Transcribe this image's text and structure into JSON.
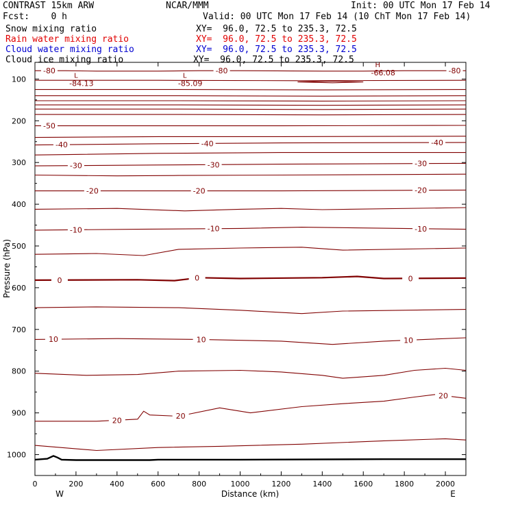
{
  "header": {
    "title": "CONTRAST 15km ARW",
    "center": "NCAR/MMM",
    "init": "Init: 00 UTC Mon 17 Feb 14",
    "fcst": "Fcst:    0 h",
    "valid": "Valid: 00 UTC Mon 17 Feb 14 (10 ChT Mon 17 Feb 14)"
  },
  "fields": [
    {
      "label": "Snow mixing ratio",
      "xy": "XY=  96.0, 72.5 to 235.3, 72.5",
      "color": "#000000"
    },
    {
      "label": "Rain water mixing ratio",
      "xy": "XY=  96.0, 72.5 to 235.3, 72.5",
      "color": "#e00000"
    },
    {
      "label": "Cloud water mixing ratio",
      "xy": "XY=  96.0, 72.5 to 235.3, 72.5",
      "color": "#0000d0"
    },
    {
      "label": "Cloud ice mixing ratio",
      "xy": "XY=  96.0, 72.5 to 235.3, 72.5",
      "color": "#000000"
    }
  ],
  "chart_data": {
    "type": "line",
    "xlabel": "Distance (km)",
    "ylabel": "Pressure (hPa)",
    "xlim": [
      0,
      2100
    ],
    "ylim": [
      1050,
      60
    ],
    "x_ticks": [
      "0",
      "200",
      "400",
      "600",
      "800",
      "1000",
      "1200",
      "1400",
      "1600",
      "1800",
      "2000"
    ],
    "y_ticks": [
      "100",
      "200",
      "300",
      "400",
      "500",
      "600",
      "700",
      "800",
      "900",
      "1000"
    ],
    "x_end_labels": {
      "left": "W",
      "right": "E"
    },
    "contour_color": "#800000",
    "contour_labels": [
      "-80",
      "-80",
      "-80",
      "-50",
      "-40",
      "-40",
      "-40",
      "-30",
      "-30",
      "-30",
      "-20",
      "-20",
      "-20",
      "-10",
      "-10",
      "-10",
      "0",
      "0",
      "0",
      "10",
      "10",
      "10",
      "20",
      "20",
      "20"
    ],
    "extrema": [
      {
        "mark": "L",
        "value": "-84.13",
        "x": 200,
        "p": 110
      },
      {
        "mark": "L",
        "value": "-85.09",
        "x": 730,
        "p": 110
      },
      {
        "mark": "H",
        "value": "-66.08",
        "x": 1670,
        "p": 85
      }
    ],
    "terrain_p": [
      [
        0,
        1012
      ],
      [
        60,
        1010
      ],
      [
        90,
        1003
      ],
      [
        110,
        1007
      ],
      [
        130,
        1012
      ],
      [
        200,
        1013
      ],
      [
        560,
        1013
      ],
      [
        600,
        1012
      ],
      [
        1000,
        1012
      ],
      [
        1700,
        1011
      ],
      [
        2100,
        1011
      ]
    ],
    "series": [
      {
        "level": "-80",
        "p": [
          [
            0,
            80
          ],
          [
            150,
            80
          ],
          [
            300,
            81
          ],
          [
            600,
            81
          ],
          [
            800,
            80
          ],
          [
            1000,
            80
          ],
          [
            1400,
            81
          ],
          [
            1600,
            81
          ],
          [
            1800,
            80
          ],
          [
            2100,
            80
          ]
        ],
        "labels": [
          {
            "x": 70,
            "text": "-80"
          },
          {
            "x": 910,
            "text": "-80"
          },
          {
            "x": 2045,
            "text": "-80"
          }
        ]
      },
      {
        "level": "",
        "p": [
          [
            0,
            103
          ],
          [
            600,
            103
          ],
          [
            1300,
            104
          ],
          [
            2100,
            103
          ]
        ]
      },
      {
        "level": "",
        "p": [
          [
            1280,
            107
          ],
          [
            1450,
            105
          ],
          [
            1600,
            107
          ],
          [
            1450,
            109
          ],
          [
            1280,
            107
          ]
        ]
      },
      {
        "level": "",
        "p": [
          [
            0,
            125
          ],
          [
            700,
            125
          ],
          [
            1400,
            126
          ],
          [
            2100,
            125
          ]
        ]
      },
      {
        "level": "",
        "p": [
          [
            0,
            140
          ],
          [
            700,
            140
          ],
          [
            1400,
            141
          ],
          [
            2100,
            140
          ]
        ]
      },
      {
        "level": "",
        "p": [
          [
            0,
            152
          ],
          [
            700,
            152
          ],
          [
            1400,
            153
          ],
          [
            2100,
            152
          ]
        ]
      },
      {
        "level": "",
        "p": [
          [
            0,
            162
          ],
          [
            700,
            162
          ],
          [
            1400,
            163
          ],
          [
            2100,
            162
          ]
        ]
      },
      {
        "level": "",
        "p": [
          [
            0,
            172
          ],
          [
            700,
            172
          ],
          [
            1400,
            173
          ],
          [
            2100,
            172
          ]
        ]
      },
      {
        "level": "",
        "p": [
          [
            0,
            185
          ],
          [
            700,
            185
          ],
          [
            1400,
            186
          ],
          [
            2100,
            185
          ]
        ]
      },
      {
        "level": "-50",
        "p": [
          [
            0,
            212
          ],
          [
            600,
            212
          ],
          [
            1200,
            212
          ],
          [
            2100,
            211
          ]
        ],
        "labels": [
          {
            "x": 70,
            "text": "-50"
          }
        ]
      },
      {
        "level": "",
        "p": [
          [
            0,
            240
          ],
          [
            600,
            238
          ],
          [
            1200,
            238
          ],
          [
            2100,
            237
          ]
        ]
      },
      {
        "level": "-40",
        "p": [
          [
            0,
            258
          ],
          [
            600,
            255
          ],
          [
            1200,
            253
          ],
          [
            2100,
            252
          ]
        ],
        "labels": [
          {
            "x": 130,
            "text": "-40"
          },
          {
            "x": 840,
            "text": "-40"
          },
          {
            "x": 1960,
            "text": "-40"
          }
        ]
      },
      {
        "level": "",
        "p": [
          [
            0,
            282
          ],
          [
            600,
            278
          ],
          [
            1200,
            276
          ],
          [
            2100,
            276
          ]
        ]
      },
      {
        "level": "-30",
        "p": [
          [
            0,
            308
          ],
          [
            600,
            306
          ],
          [
            1200,
            304
          ],
          [
            2100,
            302
          ]
        ],
        "labels": [
          {
            "x": 200,
            "text": "-30"
          },
          {
            "x": 870,
            "text": "-30"
          },
          {
            "x": 1880,
            "text": "-30"
          }
        ]
      },
      {
        "level": "",
        "p": [
          [
            0,
            330
          ],
          [
            400,
            332
          ],
          [
            700,
            331
          ],
          [
            1200,
            330
          ],
          [
            2100,
            328
          ]
        ]
      },
      {
        "level": "-20",
        "p": [
          [
            0,
            368
          ],
          [
            400,
            368
          ],
          [
            700,
            368
          ],
          [
            1200,
            368
          ],
          [
            2100,
            366
          ]
        ],
        "labels": [
          {
            "x": 280,
            "text": "-20"
          },
          {
            "x": 800,
            "text": "-20"
          },
          {
            "x": 1880,
            "text": "-20"
          }
        ]
      },
      {
        "level": "",
        "p": [
          [
            0,
            412
          ],
          [
            400,
            410
          ],
          [
            730,
            416
          ],
          [
            1000,
            412
          ],
          [
            1200,
            410
          ],
          [
            1400,
            413
          ],
          [
            2100,
            408
          ]
        ]
      },
      {
        "level": "-10",
        "p": [
          [
            0,
            462
          ],
          [
            500,
            460
          ],
          [
            1000,
            458
          ],
          [
            1300,
            455
          ],
          [
            2100,
            460
          ]
        ],
        "labels": [
          {
            "x": 200,
            "text": "-10"
          },
          {
            "x": 870,
            "text": "-10"
          },
          {
            "x": 1880,
            "text": "-10"
          }
        ]
      },
      {
        "level": "",
        "p": [
          [
            0,
            520
          ],
          [
            300,
            518
          ],
          [
            530,
            523
          ],
          [
            700,
            508
          ],
          [
            1000,
            505
          ],
          [
            1300,
            503
          ],
          [
            1500,
            510
          ],
          [
            2100,
            505
          ]
        ]
      },
      {
        "level": "0",
        "p": [
          [
            0,
            582
          ],
          [
            500,
            581
          ],
          [
            680,
            583
          ],
          [
            800,
            576
          ],
          [
            1000,
            578
          ],
          [
            1400,
            576
          ],
          [
            1570,
            573
          ],
          [
            1700,
            578
          ],
          [
            2100,
            577
          ]
        ],
        "labels": [
          {
            "x": 120,
            "text": "0"
          },
          {
            "x": 790,
            "text": "0"
          },
          {
            "x": 1830,
            "text": "0"
          }
        ],
        "bold": true
      },
      {
        "level": "",
        "p": [
          [
            0,
            648
          ],
          [
            300,
            646
          ],
          [
            700,
            648
          ],
          [
            1000,
            654
          ],
          [
            1300,
            662
          ],
          [
            1500,
            656
          ],
          [
            2100,
            652
          ]
        ]
      },
      {
        "level": "10",
        "p": [
          [
            0,
            724
          ],
          [
            400,
            722
          ],
          [
            800,
            724
          ],
          [
            1200,
            728
          ],
          [
            1450,
            736
          ],
          [
            1700,
            728
          ],
          [
            2100,
            720
          ]
        ],
        "labels": [
          {
            "x": 90,
            "text": "10"
          },
          {
            "x": 810,
            "text": "10"
          },
          {
            "x": 1820,
            "text": "10"
          }
        ]
      },
      {
        "level": "",
        "p": [
          [
            0,
            805
          ],
          [
            250,
            810
          ],
          [
            500,
            808
          ],
          [
            700,
            800
          ],
          [
            1000,
            798
          ],
          [
            1200,
            802
          ],
          [
            1400,
            810
          ],
          [
            1500,
            817
          ],
          [
            1700,
            810
          ],
          [
            1850,
            798
          ],
          [
            2000,
            793
          ],
          [
            2100,
            798
          ]
        ]
      },
      {
        "level": "20",
        "p": [
          [
            0,
            920
          ],
          [
            300,
            920
          ],
          [
            500,
            915
          ],
          [
            530,
            896
          ],
          [
            560,
            905
          ],
          [
            700,
            908
          ],
          [
            900,
            888
          ],
          [
            1050,
            900
          ],
          [
            1300,
            885
          ],
          [
            1500,
            878
          ],
          [
            1700,
            872
          ],
          [
            1850,
            862
          ],
          [
            1950,
            856
          ],
          [
            2100,
            865
          ]
        ],
        "labels": [
          {
            "x": 400,
            "text": "20"
          },
          {
            "x": 710,
            "text": "20"
          },
          {
            "x": 1990,
            "text": "20"
          }
        ]
      },
      {
        "level": "",
        "p": [
          [
            0,
            978
          ],
          [
            300,
            990
          ],
          [
            600,
            983
          ],
          [
            900,
            980
          ],
          [
            1300,
            975
          ],
          [
            1700,
            967
          ],
          [
            2000,
            962
          ],
          [
            2100,
            965
          ]
        ]
      }
    ]
  }
}
